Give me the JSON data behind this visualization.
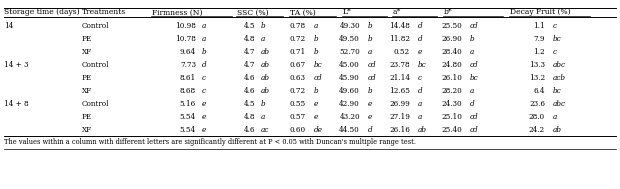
{
  "note": "The values within a column with different letters are significantly different at P < 0.05 with Duncan's multiple range test.",
  "col_headers": [
    "Storage time (days)",
    "Treatments",
    "Firmness (N)",
    "",
    "SSC (%)",
    "",
    "TA (%)",
    "",
    "L*",
    "",
    "a*",
    "",
    "b*",
    "",
    "Decay Fruit (%)",
    ""
  ],
  "rows": [
    [
      "14",
      "Control",
      "10.98",
      "a",
      "4.5",
      "b",
      "0.78",
      "a",
      "49.30",
      "b",
      "14.48",
      "d",
      "25.50",
      "cd",
      "1.1",
      "c"
    ],
    [
      "",
      "PE",
      "10.78",
      "a",
      "4.8",
      "a",
      "0.72",
      "b",
      "49.50",
      "b",
      "11.82",
      "d",
      "26.90",
      "b",
      "7.9",
      "bc"
    ],
    [
      "",
      "XF",
      "9.64",
      "b",
      "4.7",
      "ab",
      "0.71",
      "b",
      "52.70",
      "a",
      "0.52",
      "e",
      "28.40",
      "a",
      "1.2",
      "c"
    ],
    [
      "14 + 3",
      "Control",
      "7.73",
      "d",
      "4.7",
      "ab",
      "0.67",
      "bc",
      "45.00",
      "cd",
      "23.78",
      "bc",
      "24.80",
      "cd",
      "13.3",
      "abc"
    ],
    [
      "",
      "PE",
      "8.61",
      "c",
      "4.6",
      "ab",
      "0.63",
      "cd",
      "45.90",
      "cd",
      "21.14",
      "c",
      "26.10",
      "bc",
      "13.2",
      "acb"
    ],
    [
      "",
      "XF",
      "8.68",
      "c",
      "4.6",
      "ab",
      "0.72",
      "b",
      "49.60",
      "b",
      "12.65",
      "d",
      "28.20",
      "a",
      "6.4",
      "bc"
    ],
    [
      "14 + 8",
      "Control",
      "5.16",
      "e",
      "4.5",
      "b",
      "0.55",
      "e",
      "42.90",
      "e",
      "26.99",
      "a",
      "24.30",
      "d",
      "23.6",
      "abc"
    ],
    [
      "",
      "PE",
      "5.54",
      "e",
      "4.8",
      "a",
      "0.57",
      "e",
      "43.20",
      "e",
      "27.19",
      "a",
      "25.10",
      "cd",
      "28.0",
      "a"
    ],
    [
      "",
      "XF",
      "5.54",
      "e",
      "4.6",
      "ac",
      "0.60",
      "de",
      "44.50",
      "d",
      "26.16",
      "ab",
      "25.40",
      "cd",
      "24.2",
      "ab"
    ]
  ],
  "bg_color": "#ffffff",
  "text_color": "#000000",
  "font_size": 5.2,
  "header_font_size": 5.5
}
